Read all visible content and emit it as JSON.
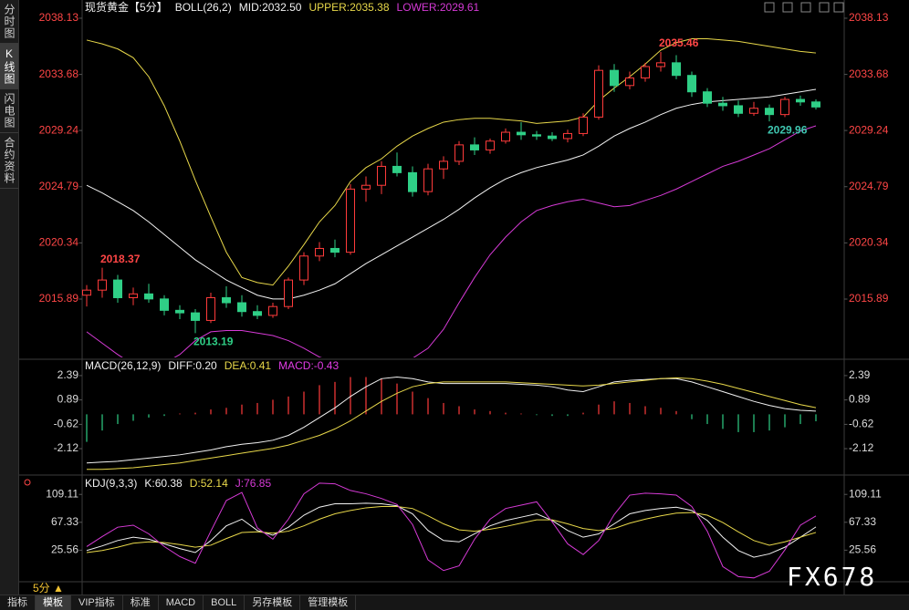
{
  "chart_data": [
    {
      "type": "candlestick",
      "title": "现货黄金【5分】",
      "indicator": "BOLL(26,2)",
      "up_color": "#ff3b3b",
      "down_color": "#2fcf86",
      "ylim": [
        2011.27,
        2038.85
      ],
      "yticks": [
        2038.13,
        2033.68,
        2029.24,
        2024.79,
        2020.34,
        2015.89
      ],
      "grid": false,
      "open": [
        2016.2,
        2016.6,
        2017.4,
        2016.0,
        2016.3,
        2015.9,
        2015.0,
        2014.8,
        2014.2,
        2016.0,
        2015.6,
        2014.9,
        2014.6,
        2015.3,
        2017.4,
        2019.3,
        2019.9,
        2019.6,
        2024.6,
        2024.9,
        2026.4,
        2025.9,
        2024.4,
        2026.2,
        2026.8,
        2028.1,
        2027.7,
        2028.4,
        2029.1,
        2028.9,
        2028.8,
        2028.6,
        2029.0,
        2030.3,
        2034.0,
        2032.8,
        2033.4,
        2034.3,
        2034.6,
        2033.6,
        2032.3,
        2031.4,
        2031.2,
        2030.6,
        2031.0,
        2030.5,
        2031.7,
        2031.5
      ],
      "high": [
        2017.0,
        2018.37,
        2017.8,
        2016.8,
        2017.1,
        2016.2,
        2015.4,
        2015.1,
        2016.4,
        2016.9,
        2016.2,
        2015.4,
        2015.6,
        2017.6,
        2019.6,
        2020.4,
        2020.6,
        2025.0,
        2025.6,
        2026.8,
        2027.5,
        2026.4,
        2026.6,
        2027.2,
        2028.4,
        2028.7,
        2028.6,
        2029.4,
        2029.9,
        2029.2,
        2029.1,
        2029.3,
        2030.6,
        2034.4,
        2034.5,
        2033.9,
        2034.6,
        2035.46,
        2035.2,
        2033.9,
        2032.6,
        2031.9,
        2031.6,
        2031.5,
        2031.3,
        2031.9,
        2032.0,
        2031.7
      ],
      "low": [
        2015.3,
        2016.0,
        2015.6,
        2015.4,
        2015.6,
        2014.6,
        2014.3,
        2013.19,
        2014.0,
        2015.2,
        2014.5,
        2014.3,
        2014.4,
        2015.1,
        2017.0,
        2018.9,
        2019.2,
        2019.4,
        2023.6,
        2024.2,
        2025.6,
        2024.0,
        2024.1,
        2025.4,
        2026.5,
        2027.3,
        2027.4,
        2028.2,
        2028.5,
        2028.5,
        2028.4,
        2028.3,
        2028.8,
        2030.1,
        2032.3,
        2032.5,
        2033.1,
        2033.9,
        2033.3,
        2031.9,
        2031.1,
        2030.8,
        2030.3,
        2030.4,
        2029.96,
        2030.3,
        2031.2,
        2030.9
      ],
      "close": [
        2016.6,
        2017.4,
        2016.0,
        2016.3,
        2015.9,
        2015.0,
        2014.8,
        2014.2,
        2016.0,
        2015.6,
        2014.9,
        2014.6,
        2015.3,
        2017.4,
        2019.3,
        2019.9,
        2019.6,
        2024.6,
        2024.9,
        2026.4,
        2025.9,
        2024.4,
        2026.2,
        2026.8,
        2028.1,
        2027.7,
        2028.4,
        2029.1,
        2028.9,
        2028.8,
        2028.6,
        2029.0,
        2030.3,
        2034.0,
        2032.8,
        2033.4,
        2034.3,
        2034.6,
        2033.6,
        2032.3,
        2031.4,
        2031.2,
        2030.6,
        2031.0,
        2030.5,
        2031.7,
        2031.5,
        2031.1
      ],
      "series": [
        {
          "name": "MID:2032.50",
          "color": "#f2f2f2",
          "values": [
            2024.9,
            2024.3,
            2023.6,
            2022.9,
            2022.0,
            2021.0,
            2020.0,
            2019.0,
            2018.2,
            2017.4,
            2016.8,
            2016.2,
            2015.9,
            2015.9,
            2016.2,
            2016.6,
            2017.1,
            2017.9,
            2018.7,
            2019.4,
            2020.1,
            2020.8,
            2021.5,
            2022.2,
            2023.0,
            2023.9,
            2024.7,
            2025.4,
            2025.9,
            2026.3,
            2026.6,
            2026.9,
            2027.3,
            2028.0,
            2028.8,
            2029.4,
            2029.9,
            2030.5,
            2031.0,
            2031.3,
            2031.5,
            2031.6,
            2031.7,
            2031.8,
            2031.9,
            2032.1,
            2032.3,
            2032.5
          ]
        },
        {
          "name": "UPPER:2035.38",
          "color": "#e8d84a",
          "values": [
            2036.4,
            2036.1,
            2035.7,
            2035.0,
            2033.5,
            2031.2,
            2028.4,
            2025.3,
            2022.4,
            2019.6,
            2017.6,
            2017.2,
            2017.0,
            2018.5,
            2020.2,
            2022.0,
            2023.3,
            2025.2,
            2026.3,
            2027.0,
            2028.0,
            2028.8,
            2029.4,
            2029.9,
            2030.1,
            2030.2,
            2030.2,
            2030.1,
            2030.0,
            2029.8,
            2029.9,
            2030.0,
            2030.3,
            2031.6,
            2032.6,
            2033.5,
            2034.5,
            2035.6,
            2036.2,
            2036.5,
            2036.5,
            2036.4,
            2036.3,
            2036.1,
            2035.9,
            2035.7,
            2035.5,
            2035.38
          ]
        },
        {
          "name": "LOWER:2029.61",
          "color": "#d63ad6",
          "values": [
            2013.3,
            2012.4,
            2011.5,
            2010.7,
            2010.4,
            2010.8,
            2011.5,
            2012.6,
            2013.3,
            2013.4,
            2013.4,
            2013.2,
            2013.0,
            2012.6,
            2012.0,
            2011.3,
            2010.9,
            2010.6,
            2010.5,
            2010.6,
            2010.9,
            2011.2,
            2012.0,
            2013.5,
            2015.6,
            2017.6,
            2019.4,
            2020.8,
            2022.0,
            2022.9,
            2023.3,
            2023.6,
            2023.8,
            2023.5,
            2023.2,
            2023.3,
            2023.7,
            2024.1,
            2024.6,
            2025.2,
            2025.8,
            2026.4,
            2026.8,
            2027.3,
            2027.8,
            2028.5,
            2029.2,
            2029.61
          ]
        }
      ],
      "annotations": [
        {
          "at": "high",
          "value": 2018.37,
          "color": "#ff4646"
        },
        {
          "at": "low",
          "value": 2013.19,
          "color": "#2fcf86"
        },
        {
          "at": "high",
          "value": 2035.46,
          "color": "#ff4646"
        },
        {
          "at": "low",
          "value": 2029.96,
          "color": "#3fc6b0"
        }
      ]
    },
    {
      "type": "macd",
      "title": "MACD(26,12,9)",
      "ylim": [
        -3.58,
        3.23
      ],
      "yticks": [
        2.39,
        0.89,
        -0.62,
        -2.12
      ],
      "grid": false,
      "series": [
        {
          "name": "DIFF:0.20",
          "color": "#f2f2f2",
          "values": [
            -3.0,
            -2.95,
            -2.9,
            -2.8,
            -2.7,
            -2.6,
            -2.5,
            -2.35,
            -2.2,
            -2.0,
            -1.85,
            -1.75,
            -1.6,
            -1.3,
            -0.8,
            -0.2,
            0.4,
            1.1,
            1.7,
            2.2,
            2.3,
            2.2,
            2.0,
            1.9,
            1.9,
            1.9,
            1.9,
            1.9,
            1.85,
            1.8,
            1.7,
            1.5,
            1.4,
            1.7,
            2.0,
            2.1,
            2.15,
            2.2,
            2.2,
            2.0,
            1.7,
            1.4,
            1.1,
            0.8,
            0.55,
            0.35,
            0.25,
            0.2
          ]
        },
        {
          "name": "DEA:0.41",
          "color": "#e8d84a",
          "values": [
            -3.4,
            -3.4,
            -3.35,
            -3.3,
            -3.2,
            -3.1,
            -3.0,
            -2.85,
            -2.7,
            -2.55,
            -2.4,
            -2.25,
            -2.1,
            -1.9,
            -1.6,
            -1.3,
            -0.9,
            -0.4,
            0.2,
            0.8,
            1.3,
            1.7,
            1.9,
            2.0,
            2.0,
            2.0,
            2.0,
            2.0,
            1.95,
            1.9,
            1.85,
            1.8,
            1.75,
            1.8,
            1.9,
            2.0,
            2.1,
            2.2,
            2.25,
            2.2,
            2.05,
            1.85,
            1.6,
            1.35,
            1.1,
            0.85,
            0.6,
            0.41
          ]
        }
      ],
      "histogram": {
        "name": "MACD:-0.43",
        "color": "#e23ce6",
        "up_color": "#ff3b3b",
        "down_color": "#2fcf86",
        "values": [
          -1.7,
          -1.0,
          -0.6,
          -0.4,
          -0.2,
          -0.1,
          0.05,
          0.1,
          0.3,
          0.4,
          0.6,
          0.7,
          0.9,
          1.1,
          1.4,
          1.8,
          2.0,
          2.3,
          2.3,
          2.2,
          1.9,
          1.4,
          1.0,
          0.7,
          0.5,
          0.3,
          0.2,
          0.1,
          0.05,
          -0.05,
          -0.1,
          -0.1,
          0.1,
          0.6,
          0.8,
          0.7,
          0.5,
          0.4,
          0.2,
          -0.3,
          -0.6,
          -0.9,
          -1.1,
          -1.1,
          -1.0,
          -0.8,
          -0.6,
          -0.43
        ]
      }
    },
    {
      "type": "line",
      "title": "KDJ(9,3,3)",
      "ylim": [
        -19,
        134
      ],
      "yticks": [
        109.11,
        67.33,
        25.56
      ],
      "grid": false,
      "series": [
        {
          "name": "K:60.38",
          "color": "#f2f2f2",
          "values": [
            25,
            32,
            40,
            45,
            42,
            35,
            28,
            22,
            40,
            62,
            72,
            55,
            48,
            60,
            78,
            90,
            95,
            95,
            96,
            95,
            92,
            80,
            55,
            40,
            38,
            50,
            62,
            70,
            75,
            80,
            70,
            55,
            45,
            50,
            65,
            80,
            85,
            88,
            90,
            85,
            70,
            45,
            25,
            15,
            20,
            30,
            45,
            60.38
          ]
        },
        {
          "name": "D:52.14",
          "color": "#e8d84a",
          "values": [
            22,
            25,
            30,
            36,
            38,
            37,
            34,
            30,
            33,
            43,
            52,
            53,
            51,
            54,
            62,
            72,
            80,
            85,
            89,
            91,
            91,
            88,
            77,
            65,
            56,
            54,
            57,
            61,
            66,
            71,
            71,
            65,
            58,
            55,
            58,
            66,
            72,
            77,
            81,
            82,
            78,
            67,
            53,
            40,
            33,
            38,
            45,
            52.14
          ]
        },
        {
          "name": "J:76.85",
          "color": "#d63ad6",
          "values": [
            31,
            46,
            60,
            63,
            50,
            31,
            16,
            6,
            54,
            100,
            112,
            59,
            42,
            72,
            110,
            126,
            125,
            115,
            110,
            103,
            94,
            64,
            11,
            -5,
            2,
            42,
            72,
            88,
            93,
            98,
            68,
            35,
            19,
            40,
            79,
            108,
            111,
            110,
            108,
            91,
            54,
            1,
            -14,
            -16,
            -6,
            26,
            63,
            76.85
          ]
        }
      ]
    }
  ],
  "ui": {
    "sidebar_tabs": [
      "分时图",
      "K线图",
      "闪电图",
      "合约资料"
    ],
    "active_tab": 1,
    "period": "5分",
    "bottom_tabs": [
      "指标",
      "模板",
      "VIP指标",
      "标准",
      "MACD",
      "BOLL",
      "另存模板",
      "管理模板"
    ],
    "active_bottom": 1,
    "watermark": "FX678"
  }
}
